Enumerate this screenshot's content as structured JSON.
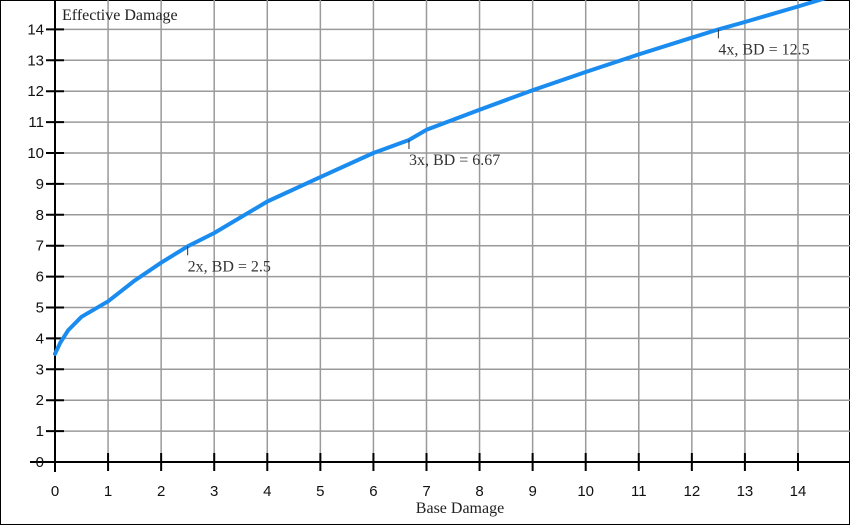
{
  "chart_data": {
    "type": "line",
    "title": "",
    "xlabel": "Base Damage",
    "ylabel": "Effective Damage",
    "xlim": [
      0,
      15
    ],
    "ylim": [
      0,
      15
    ],
    "x_ticks": [
      "0",
      "1",
      "2",
      "3",
      "4",
      "5",
      "6",
      "7",
      "8",
      "9",
      "10",
      "11",
      "12",
      "13",
      "14"
    ],
    "y_ticks": [
      "0",
      "1",
      "2",
      "3",
      "4",
      "5",
      "6",
      "7",
      "8",
      "9",
      "10",
      "11",
      "12",
      "13",
      "14"
    ],
    "grid": true,
    "series_color": "#1a8cf0",
    "series": [
      {
        "x": [
          0,
          0.1,
          0.25,
          0.5,
          1,
          1.5,
          2,
          2.5,
          3,
          4,
          5,
          6,
          6.67,
          7,
          8,
          9,
          10,
          11,
          12,
          12.5,
          13,
          14,
          14.5
        ],
        "y": [
          3.5,
          3.86,
          4.27,
          4.7,
          5.2,
          5.87,
          6.45,
          6.98,
          7.41,
          8.43,
          9.22,
          10.0,
          10.42,
          10.75,
          11.4,
          12.03,
          12.62,
          13.19,
          13.73,
          14.0,
          14.24,
          14.74,
          15.0
        ]
      }
    ],
    "annotations": [
      {
        "x": 2.5,
        "y": 6.98,
        "text": "2x, BD = 2.5"
      },
      {
        "x": 6.67,
        "y": 10.42,
        "text": "3x, BD = 6.67"
      },
      {
        "x": 12.5,
        "y": 14.0,
        "text": "4x, BD = 12.5"
      }
    ]
  }
}
